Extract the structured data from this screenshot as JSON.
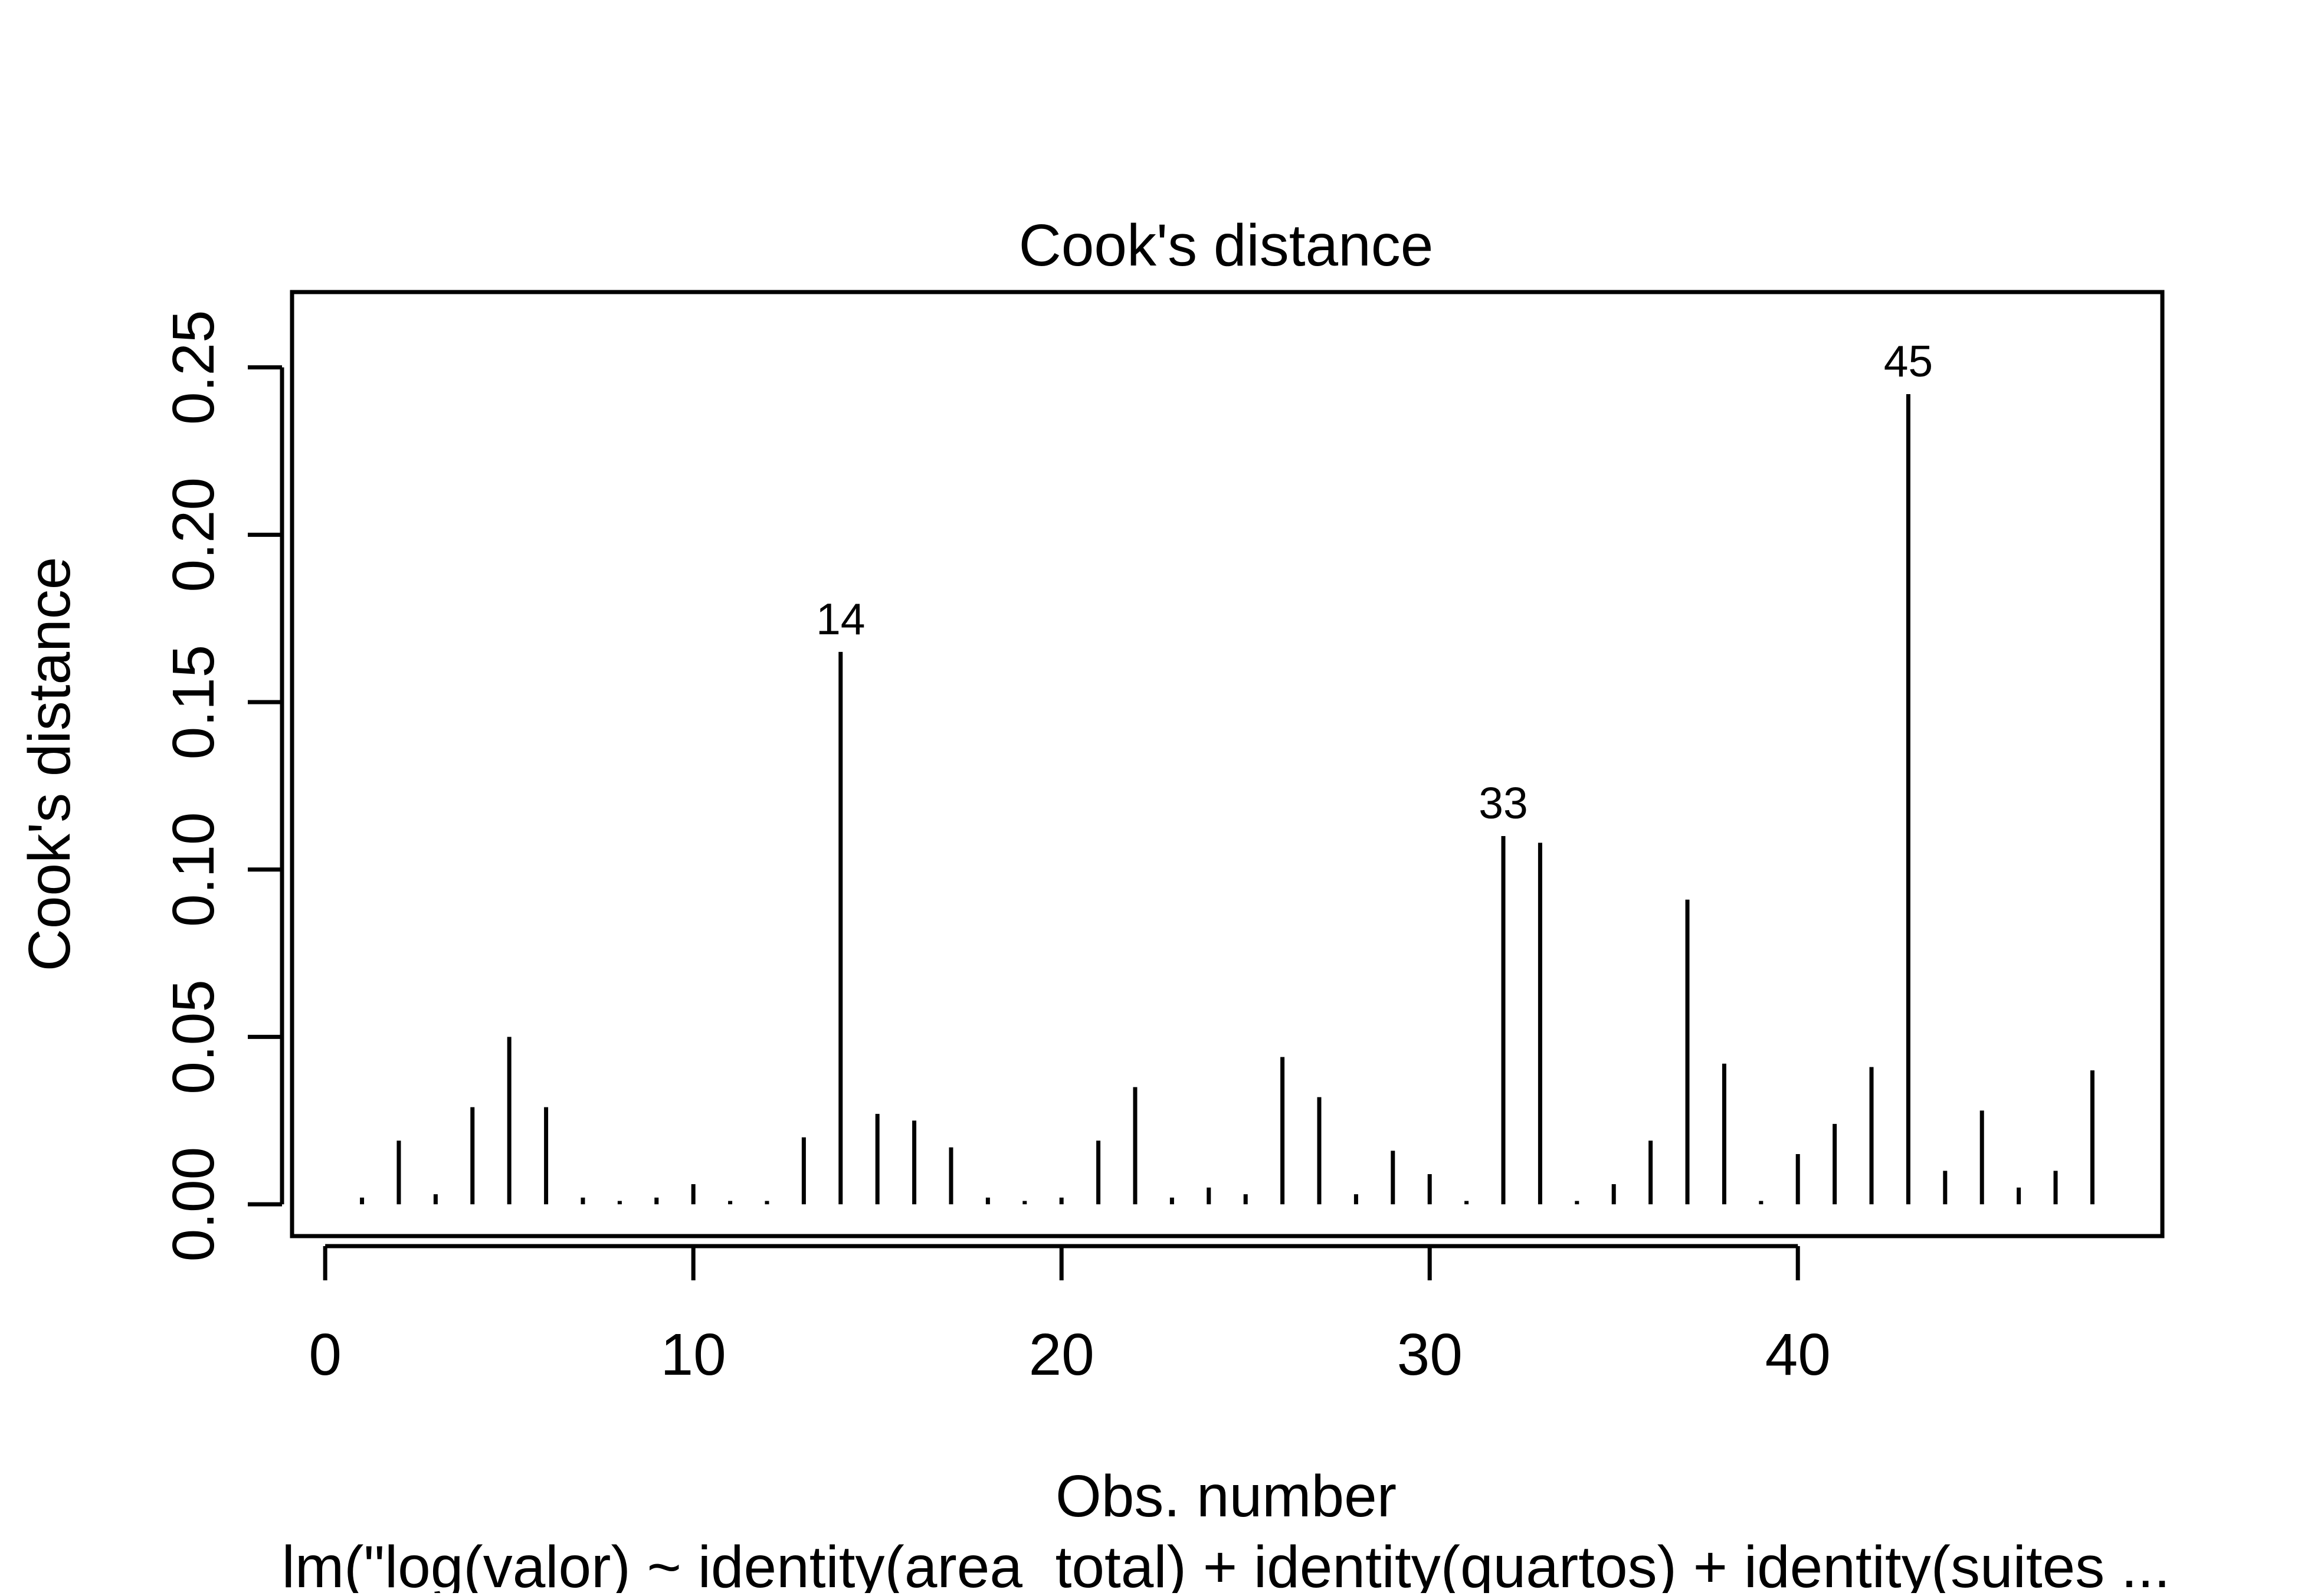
{
  "chart_data": {
    "type": "bar",
    "style": "vertical-lines",
    "title": "Cook's distance",
    "xlabel": "Obs. number",
    "ylabel": "Cook's distance",
    "subtitle": "lm(\"log(valor) ~ identity(area_total) + identity(quartos) + identity(suites ...",
    "xlim": [
      -0.9,
      49.9
    ],
    "ylim": [
      -0.0095,
      0.2725
    ],
    "x_ticks": [
      0,
      10,
      20,
      30,
      40
    ],
    "y_ticks": [
      0.0,
      0.05,
      0.1,
      0.15,
      0.2,
      0.25
    ],
    "x_tick_labels": [
      "0",
      "10",
      "20",
      "30",
      "40"
    ],
    "y_tick_labels": [
      "0.00",
      "0.05",
      "0.10",
      "0.15",
      "0.20",
      "0.25"
    ],
    "grid": false,
    "colors": {
      "line": "#000000",
      "background": "#ffffff"
    },
    "x": [
      1,
      2,
      3,
      4,
      5,
      6,
      7,
      8,
      9,
      10,
      11,
      12,
      13,
      14,
      15,
      16,
      17,
      18,
      19,
      20,
      21,
      22,
      23,
      24,
      25,
      26,
      27,
      28,
      29,
      30,
      31,
      32,
      33,
      34,
      35,
      36,
      37,
      38,
      39,
      40,
      41,
      42,
      43,
      44,
      45,
      46,
      47,
      48
    ],
    "values": [
      0.002,
      0.019,
      0.003,
      0.029,
      0.05,
      0.029,
      0.002,
      0.001,
      0.002,
      0.006,
      0.001,
      0.001,
      0.02,
      0.165,
      0.027,
      0.025,
      0.017,
      0.002,
      0.001,
      0.002,
      0.019,
      0.035,
      0.002,
      0.005,
      0.003,
      0.044,
      0.032,
      0.003,
      0.016,
      0.009,
      0.001,
      0.11,
      0.108,
      0.001,
      0.006,
      0.019,
      0.091,
      0.042,
      0.001,
      0.015,
      0.024,
      0.041,
      0.242,
      0.01,
      0.028,
      0.005,
      0.01,
      0.04
    ],
    "annotations": [
      {
        "x": 14,
        "label": "14"
      },
      {
        "x": 32,
        "label": "33"
      },
      {
        "x": 43,
        "label": "45"
      }
    ]
  }
}
